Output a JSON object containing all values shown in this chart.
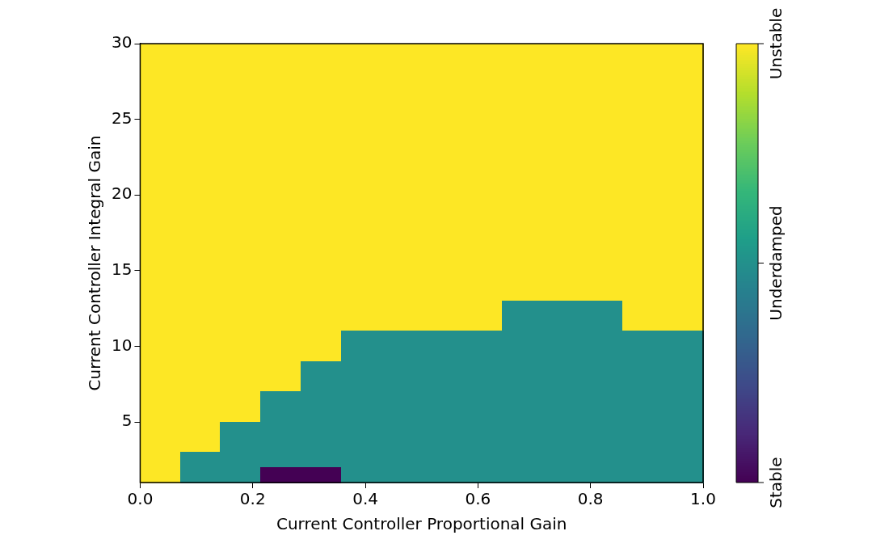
{
  "chart_data": {
    "type": "heatmap",
    "xlabel": "Current Controller Proportional Gain",
    "ylabel": "Current Controller Integral Gain",
    "xlim": [
      0,
      1
    ],
    "ylim": [
      1,
      30
    ],
    "xticks": [
      {
        "value": 0,
        "label": "0.0"
      },
      0.2,
      0.4,
      0.6,
      0.8,
      {
        "value": 1,
        "label": "1.0"
      }
    ],
    "yticks": [
      5,
      10,
      15,
      20,
      25,
      30
    ],
    "clim": [
      0,
      2
    ],
    "cticks": [
      {
        "value": 0,
        "label": "Stable"
      },
      {
        "value": 1,
        "label": "Underdamped"
      },
      {
        "value": 2,
        "label": "Unstable"
      }
    ],
    "cells": [
      [
        2,
        2,
        2,
        2,
        2,
        2,
        2,
        2,
        2,
        2,
        2,
        2,
        2,
        2
      ],
      [
        2,
        2,
        2,
        2,
        2,
        2,
        2,
        2,
        2,
        2,
        2,
        2,
        2,
        2
      ],
      [
        2,
        2,
        2,
        2,
        2,
        2,
        2,
        2,
        2,
        2,
        2,
        2,
        2,
        2
      ],
      [
        2,
        2,
        2,
        2,
        2,
        2,
        2,
        2,
        2,
        2,
        2,
        2,
        2,
        2
      ],
      [
        2,
        2,
        2,
        2,
        2,
        2,
        2,
        2,
        2,
        2,
        2,
        2,
        2,
        2
      ],
      [
        2,
        2,
        2,
        2,
        2,
        2,
        2,
        2,
        2,
        2,
        2,
        2,
        2,
        2
      ],
      [
        2,
        2,
        2,
        2,
        2,
        2,
        2,
        2,
        2,
        2,
        2,
        2,
        2,
        2
      ],
      [
        2,
        2,
        2,
        2,
        2,
        2,
        2,
        2,
        2,
        2,
        2,
        2,
        2,
        2
      ],
      [
        2,
        2,
        2,
        2,
        2,
        2,
        2,
        2,
        2,
        2,
        2,
        2,
        2,
        2
      ],
      [
        2,
        2,
        2,
        2,
        2,
        2,
        2,
        2,
        2,
        2,
        2,
        2,
        2,
        2
      ],
      [
        2,
        2,
        2,
        2,
        2,
        2,
        2,
        2,
        2,
        2,
        2,
        2,
        2,
        2
      ],
      [
        2,
        2,
        2,
        2,
        2,
        2,
        2,
        2,
        2,
        2,
        2,
        2,
        2,
        2
      ],
      [
        2,
        2,
        2,
        2,
        2,
        2,
        2,
        2,
        2,
        2,
        2,
        2,
        2,
        2
      ],
      [
        2,
        2,
        2,
        2,
        2,
        2,
        2,
        2,
        2,
        2,
        2,
        2,
        2,
        2
      ],
      [
        2,
        2,
        2,
        2,
        2,
        2,
        2,
        2,
        2,
        2,
        2,
        2,
        2,
        2
      ],
      [
        2,
        2,
        2,
        2,
        2,
        2,
        2,
        2,
        2,
        2,
        2,
        2,
        2,
        2
      ],
      [
        2,
        2,
        2,
        2,
        2,
        2,
        2,
        2,
        2,
        2,
        2,
        2,
        2,
        2
      ],
      [
        2,
        2,
        2,
        2,
        2,
        2,
        2,
        2,
        2,
        1,
        1,
        1,
        2,
        2
      ],
      [
        2,
        2,
        2,
        2,
        2,
        2,
        2,
        2,
        2,
        1,
        1,
        1,
        2,
        2
      ],
      [
        2,
        2,
        2,
        2,
        2,
        1,
        1,
        1,
        1,
        1,
        1,
        1,
        1,
        1
      ],
      [
        2,
        2,
        2,
        2,
        2,
        1,
        1,
        1,
        1,
        1,
        1,
        1,
        1,
        1
      ],
      [
        2,
        2,
        2,
        2,
        1,
        1,
        1,
        1,
        1,
        1,
        1,
        1,
        1,
        1
      ],
      [
        2,
        2,
        2,
        2,
        1,
        1,
        1,
        1,
        1,
        1,
        1,
        1,
        1,
        1
      ],
      [
        2,
        2,
        2,
        1,
        1,
        1,
        1,
        1,
        1,
        1,
        1,
        1,
        1,
        1
      ],
      [
        2,
        2,
        2,
        1,
        1,
        1,
        1,
        1,
        1,
        1,
        1,
        1,
        1,
        1
      ],
      [
        2,
        2,
        1,
        1,
        1,
        1,
        1,
        1,
        1,
        1,
        1,
        1,
        1,
        1
      ],
      [
        2,
        2,
        1,
        1,
        1,
        1,
        1,
        1,
        1,
        1,
        1,
        1,
        1,
        1
      ],
      [
        2,
        1,
        1,
        1,
        1,
        1,
        1,
        1,
        1,
        1,
        1,
        1,
        1,
        1
      ],
      [
        2,
        1,
        1,
        0,
        0,
        1,
        1,
        1,
        1,
        1,
        1,
        1,
        1,
        1
      ]
    ]
  }
}
